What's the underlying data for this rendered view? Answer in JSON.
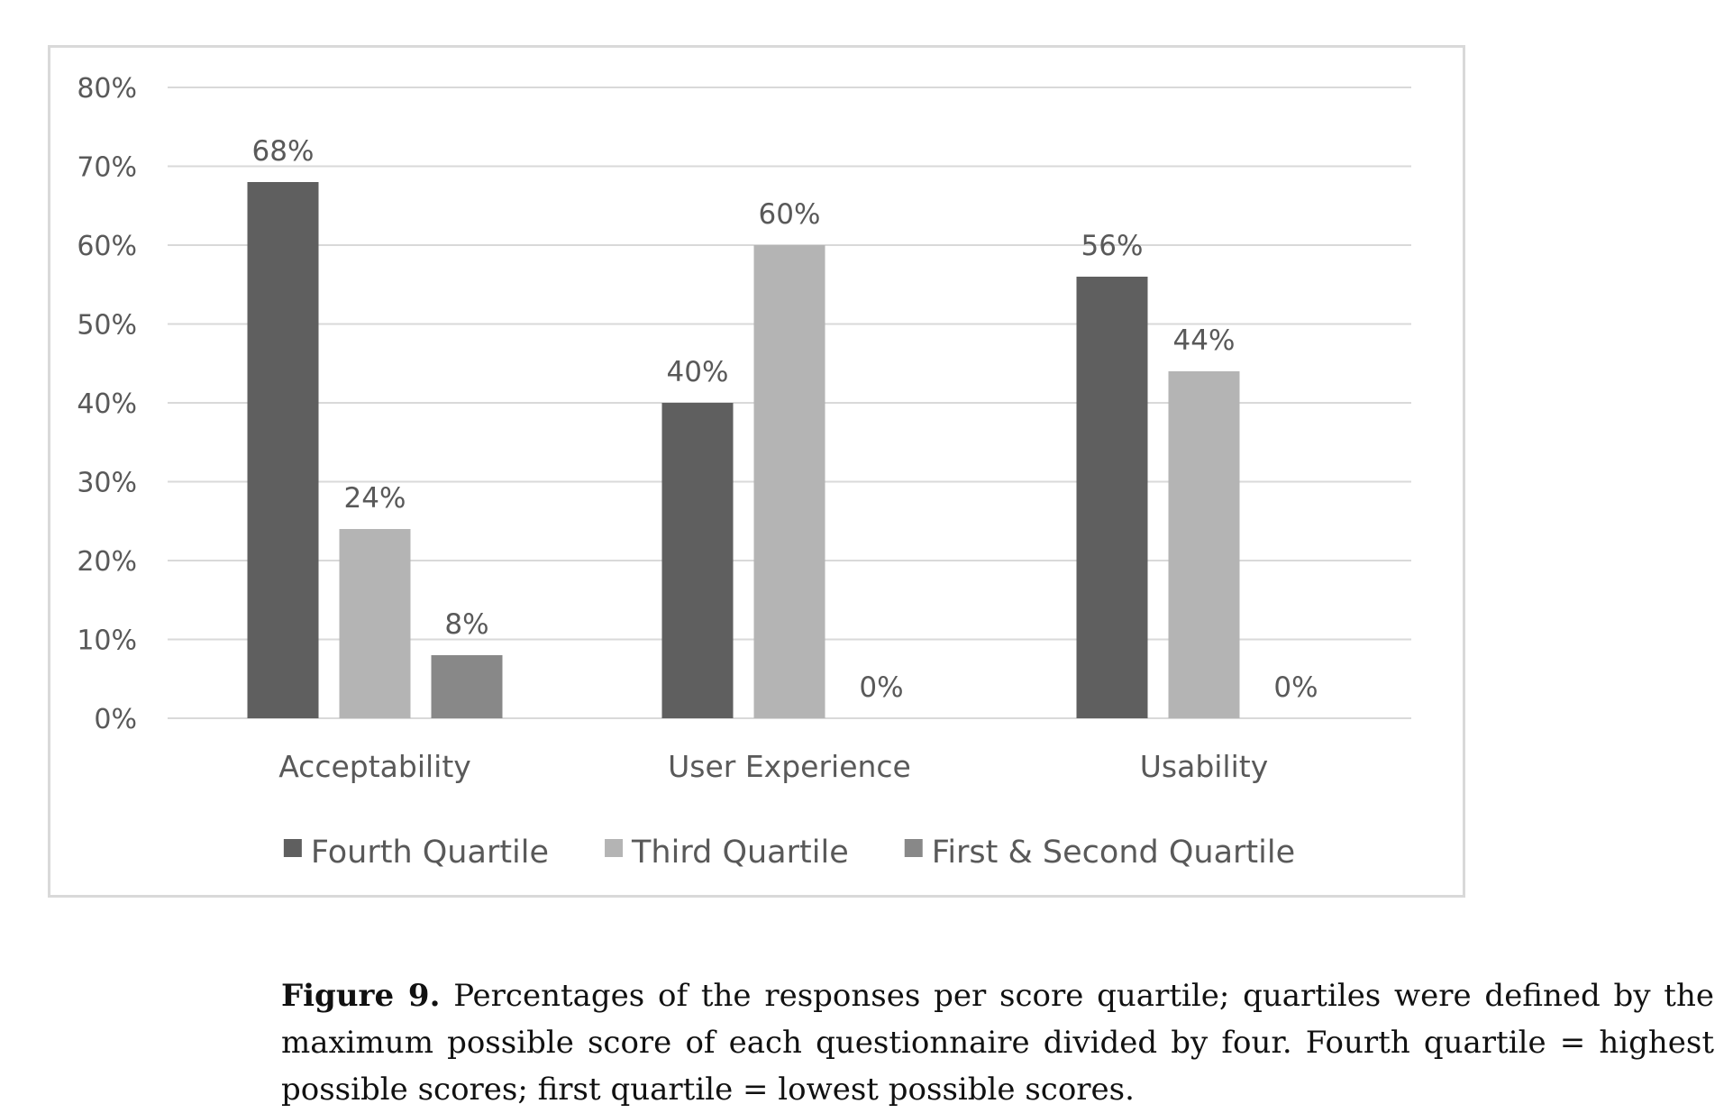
{
  "chart_data": {
    "type": "bar",
    "categories": [
      "Acceptability",
      "User Experience",
      "Usability"
    ],
    "series": [
      {
        "name": "Fourth Quartile",
        "values": [
          68,
          40,
          56
        ],
        "labels": [
          "68%",
          "40%",
          "56%"
        ],
        "color": "#5f5f5f"
      },
      {
        "name": "Third Quartile",
        "values": [
          24,
          60,
          44
        ],
        "labels": [
          "24%",
          "60%",
          "44%"
        ],
        "color": "#b4b4b4"
      },
      {
        "name": "First & Second Quartile",
        "values": [
          8,
          0,
          0
        ],
        "labels": [
          "8%",
          "0%",
          "0%"
        ],
        "color": "#888888"
      }
    ],
    "ylim": [
      0,
      80
    ],
    "yticks": [
      0,
      10,
      20,
      30,
      40,
      50,
      60,
      70,
      80
    ],
    "ytick_labels": [
      "0%",
      "10%",
      "20%",
      "30%",
      "40%",
      "50%",
      "60%",
      "70%",
      "80%"
    ],
    "grid": true,
    "legend_position": "bottom",
    "gridline_color": "#d9d9d9",
    "text_color": "#595959"
  },
  "caption": {
    "label": "Figure 9.",
    "text": "Percentages of the responses per score quartile; quartiles were defined by the maximum possible score of each questionnaire divided by four. Fourth quartile = highest possible scores; first quartile = lowest possible scores."
  }
}
